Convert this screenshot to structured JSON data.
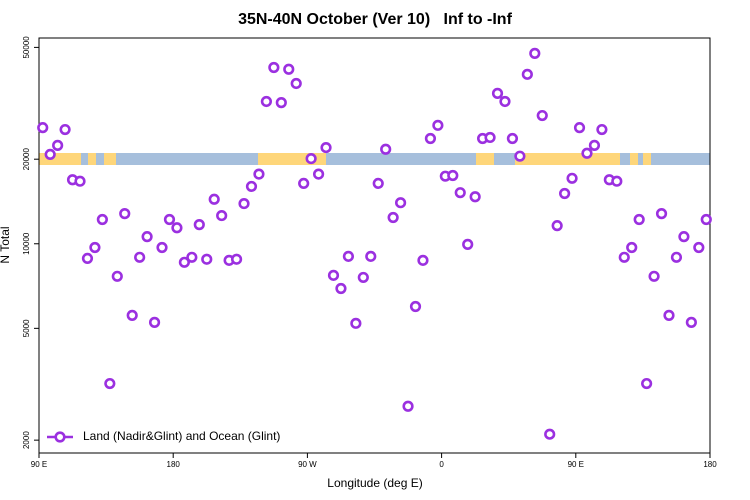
{
  "chart_data": {
    "type": "scatter",
    "title": "35N-40N October (Ver 10)   Inf to -Inf",
    "xlabel": "Longitude (deg E)",
    "ylabel": "N Total",
    "xlim": [
      90,
      540
    ],
    "xticks": [
      {
        "value": 90,
        "label": "90 E"
      },
      180,
      {
        "value": 270,
        "label": "90 W"
      },
      {
        "value": 360,
        "label": "0"
      },
      {
        "value": 450,
        "label": "90 E"
      },
      {
        "value": 540,
        "label": "180"
      }
    ],
    "ylim": [
      1800,
      54000
    ],
    "ylog": true,
    "yticks": [
      2000,
      5000,
      10000,
      20000,
      50000
    ],
    "legend": "bottom-left",
    "series": [
      {
        "name": "Land (Nadir&Glint) and Ocean (Glint)",
        "color": "#9b30e0",
        "x": [
          92.5,
          97.5,
          102.5,
          107.5,
          112.5,
          117.5,
          122.5,
          127.5,
          132.5,
          137.5,
          142.5,
          147.5,
          152.5,
          157.5,
          162.5,
          167.5,
          172.5,
          177.5,
          182.5,
          187.5,
          192.5,
          197.5,
          202.5,
          207.5,
          212.5,
          217.5,
          222.5,
          227.5,
          232.5,
          237.5,
          242.5,
          247.5,
          252.5,
          257.5,
          262.5,
          267.5,
          272.5,
          277.5,
          282.5,
          287.5,
          292.5,
          297.5,
          302.5,
          307.5,
          312.5,
          317.5,
          322.5,
          327.5,
          332.5,
          337.5,
          342.5,
          347.5,
          352.5,
          357.5,
          362.5,
          367.5,
          372.5,
          377.5,
          382.5,
          387.5,
          392.5,
          397.5,
          402.5,
          407.5,
          412.5,
          417.5,
          422.5,
          427.5,
          432.5,
          437.5,
          442.5,
          447.5,
          452.5,
          457.5,
          462.5,
          467.5,
          472.5,
          477.5,
          482.5,
          487.5,
          492.5,
          497.5,
          502.5,
          507.5,
          512.5,
          517.5,
          522.5,
          527.5,
          532.5,
          537.5
        ],
        "values": [
          25900,
          20800,
          22400,
          25500,
          16900,
          16700,
          8870,
          9700,
          12200,
          3180,
          7660,
          12800,
          5560,
          8950,
          10600,
          5250,
          9700,
          12200,
          11400,
          8590,
          8950,
          11700,
          8810,
          14400,
          12600,
          8730,
          8810,
          13900,
          16000,
          17700,
          32100,
          42400,
          31800,
          41800,
          37200,
          16400,
          20100,
          17700,
          22000,
          7720,
          6930,
          9020,
          5210,
          7590,
          9020,
          16400,
          21700,
          12400,
          14000,
          2640,
          5980,
          8730,
          23700,
          26400,
          17400,
          17500,
          15200,
          9950,
          14700,
          23700,
          23900,
          34300,
          32100,
          23700,
          20500,
          40100,
          47600,
          28600,
          2100,
          11600,
          15100,
          17100,
          25900,
          21000,
          22400,
          25500,
          16900,
          16700,
          8950,
          9700,
          12200,
          3180,
          7660,
          12800,
          5560,
          8950,
          10600,
          5250,
          9700,
          12200
        ]
      }
    ]
  }
}
